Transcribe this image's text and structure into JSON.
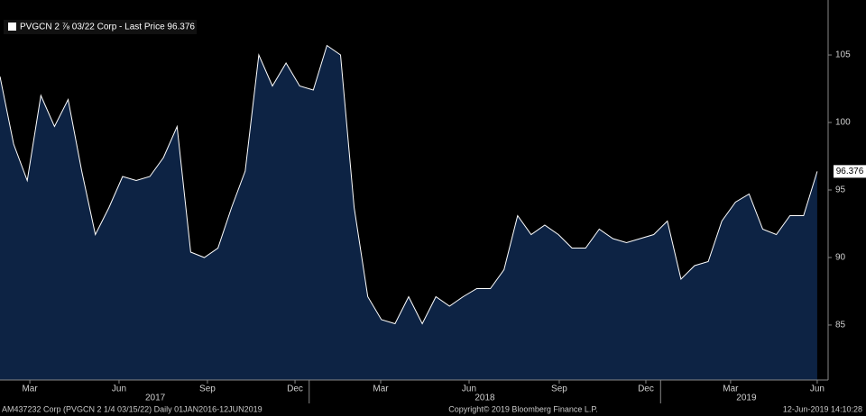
{
  "chart_data": {
    "type": "area",
    "legend": "PVGCN 2 ⅞ 03/22 Corp - Last Price 96.376",
    "last_price_label": "96.376",
    "footer_left": "AM437232 Corp (PVGCN 2 1/4 03/15/22)  Daily 01JAN2016-12JUN2019",
    "footer_center": "Copyright© 2019 Bloomberg Finance L.P.",
    "footer_right": "12-Jun-2019 14:10:28",
    "categories": [
      null,
      null,
      null,
      null,
      null,
      null,
      null,
      null,
      null,
      null,
      null,
      null,
      null,
      null,
      null,
      null,
      null,
      null,
      null,
      null,
      null,
      null,
      null,
      null,
      null,
      null,
      null,
      null,
      null,
      null,
      null,
      null,
      null,
      null,
      null,
      null,
      null,
      null,
      null,
      null,
      null,
      null,
      null,
      null,
      null,
      null,
      null,
      null,
      null,
      null,
      null,
      null,
      null,
      null,
      null,
      null,
      null,
      null,
      null,
      null,
      null
    ],
    "series": [
      {
        "name": "Last Price",
        "color": "#ffffff",
        "fill": "#0d2344",
        "values": [
          103.4,
          98.4,
          95.7,
          102,
          99.7,
          101.7,
          96.4,
          91.7,
          93.7,
          96,
          95.7,
          96,
          97.4,
          99.7,
          90.4,
          90,
          90.7,
          93.7,
          96.4,
          105,
          102.7,
          104.4,
          102.7,
          102.4,
          105.7,
          105,
          93.7,
          87.1,
          85.4,
          85.1,
          87.1,
          85.1,
          87.1,
          86.4,
          87.1,
          87.7,
          87.7,
          89.1,
          93.1,
          91.7,
          92.4,
          91.7,
          90.7,
          90.7,
          92.1,
          91.4,
          91.1,
          91.4,
          91.7,
          92.7,
          88.4,
          89.4,
          89.7,
          92.7,
          94.1,
          94.7,
          92.1,
          91.7,
          93.1,
          93.1,
          96.376
        ]
      }
    ],
    "xlim": [
      0,
      60.8
    ],
    "xticks": [
      {
        "value": 2.19,
        "label": "Mar"
      },
      {
        "value": 8.74,
        "label": "Jun"
      },
      {
        "value": 15.23,
        "label": "Sep"
      },
      {
        "value": 21.66,
        "label": "Dec"
      },
      {
        "value": 27.95,
        "label": "Mar"
      },
      {
        "value": 34.44,
        "label": "Jun"
      },
      {
        "value": 41.06,
        "label": "Sep"
      },
      {
        "value": 47.42,
        "label": "Dec"
      },
      {
        "value": 53.64,
        "label": "Mar"
      },
      {
        "value": 60.0,
        "label": "Jun"
      }
    ],
    "year_labels": [
      {
        "value": 11.4,
        "label": "2017"
      },
      {
        "value": 35.6,
        "label": "2018"
      },
      {
        "value": 54.8,
        "label": "2019"
      }
    ],
    "year_ticks": [
      22.7,
      48.5
    ],
    "ylim": [
      80.93,
      109.07
    ],
    "yticks": [
      85,
      90,
      95,
      100,
      105
    ],
    "grid": false
  }
}
